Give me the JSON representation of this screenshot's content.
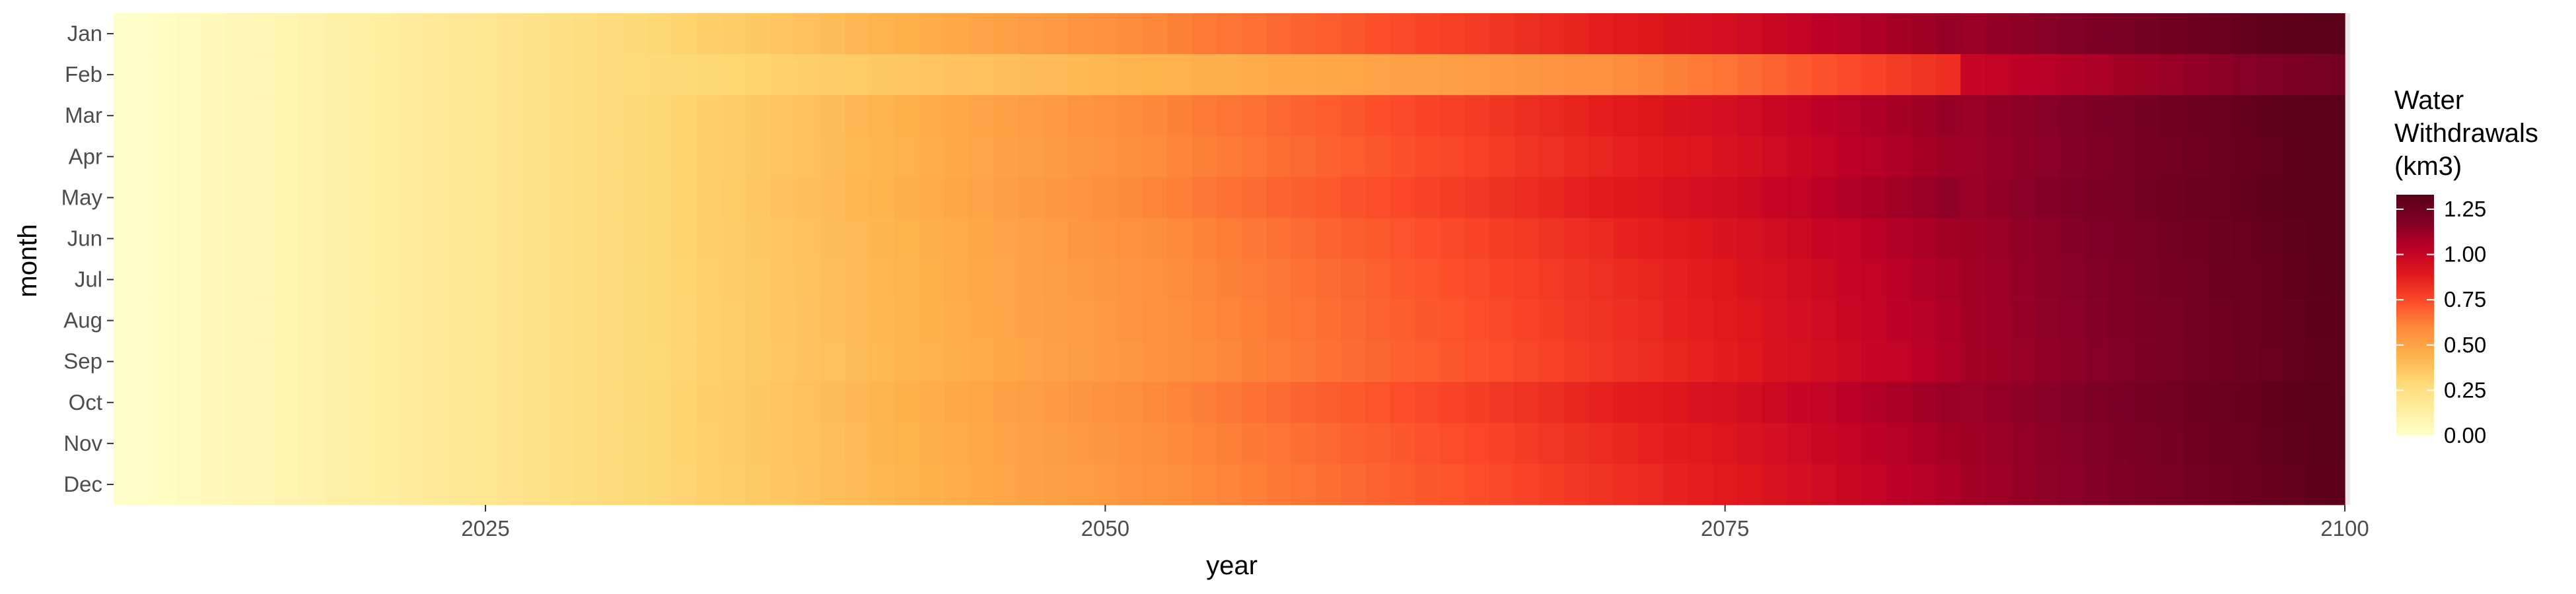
{
  "chart_data": {
    "type": "heatmap",
    "xlabel": "year",
    "ylabel": "month",
    "x_start": 2010,
    "x_end": 2100,
    "xlim": [
      2010,
      2100
    ],
    "x_ticks": [
      2025,
      2050,
      2075,
      2100
    ],
    "y_categories": [
      "Jan",
      "Feb",
      "Mar",
      "Apr",
      "May",
      "Jun",
      "Jul",
      "Aug",
      "Sep",
      "Oct",
      "Nov",
      "Dec"
    ],
    "value_trend": {
      "description_free_anchor_years": [
        2010,
        2025,
        2050,
        2065,
        2075,
        2085,
        2100
      ],
      "anchor_values": [
        0.0,
        0.2,
        0.55,
        0.75,
        0.9,
        1.1,
        1.33
      ]
    },
    "month_offsets": [
      0.05,
      -0.25,
      0.05,
      0.03,
      0.06,
      0.02,
      0.0,
      -0.01,
      -0.02,
      0.04,
      0.01,
      -0.01
    ],
    "legend": {
      "title_lines": [
        "Water",
        "Withdrawals",
        "(km3)"
      ],
      "ticks": [
        0.0,
        0.25,
        0.5,
        0.75,
        1.0,
        1.25
      ],
      "tick_labels": [
        "0.00",
        "0.25",
        "0.50",
        "0.75",
        "1.00",
        "1.25"
      ],
      "range": [
        0,
        1.33
      ],
      "placement": "right"
    },
    "colormap": [
      "#ffffcc",
      "#ffeda0",
      "#fed976",
      "#feb24c",
      "#fd8d3c",
      "#fc4e2a",
      "#e31a1c",
      "#bd0026",
      "#800026",
      "#5a0018"
    ],
    "grid": false
  }
}
